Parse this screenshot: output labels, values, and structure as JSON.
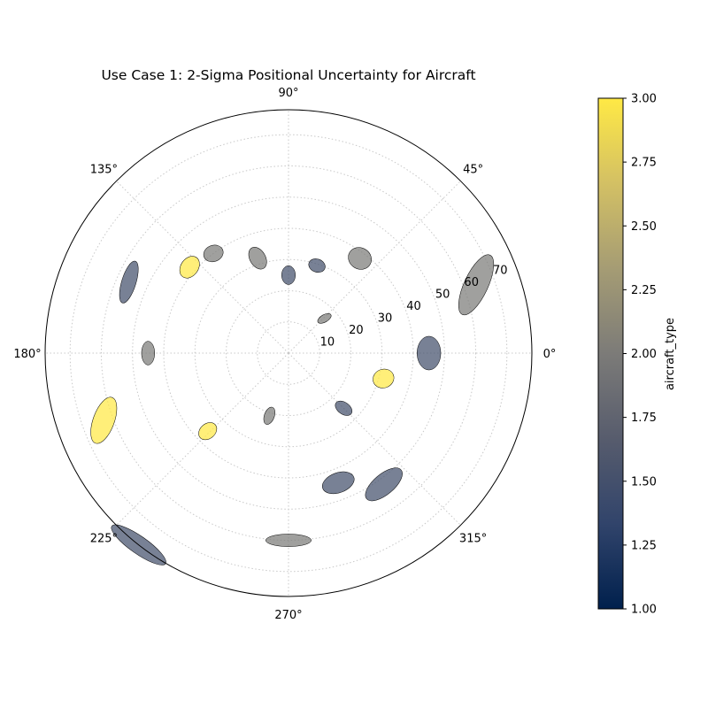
{
  "chart_data": {
    "type": "polar-ellipse-scatter",
    "title": "Use Case 1: 2-Sigma Positional Uncertainty for Aircraft",
    "angle_ticks": [
      "0°",
      "45°",
      "90°",
      "135°",
      "180°",
      "225°",
      "270°",
      "315°"
    ],
    "radial_ticks": [
      "10",
      "20",
      "30",
      "40",
      "50",
      "60",
      "70"
    ],
    "rlim": [
      0,
      78
    ],
    "grid": true,
    "colorbar": {
      "label": "aircraft_type",
      "range": [
        1.0,
        3.0
      ],
      "ticks": [
        "1.00",
        "1.25",
        "1.50",
        "1.75",
        "2.00",
        "2.25",
        "2.50",
        "2.75",
        "3.00"
      ],
      "colormap": "cividis",
      "colors": [
        "#00204d",
        "#31446b",
        "#575c6d",
        "#7c7b78",
        "#a59c74",
        "#d3c064",
        "#ffe945"
      ]
    },
    "aircraft": [
      {
        "theta": 44.0,
        "r": 16.0,
        "type": 2,
        "sigma_major": 2.4,
        "sigma_minor": 1.2,
        "tilt": 30
      },
      {
        "theta": 90.0,
        "r": 25.0,
        "type": 1.5,
        "sigma_major": 3.0,
        "sigma_minor": 2.2,
        "tilt": 90
      },
      {
        "theta": 72.0,
        "r": 29.5,
        "type": 1.5,
        "sigma_major": 2.7,
        "sigma_minor": 2.1,
        "tilt": -20
      },
      {
        "theta": 53.0,
        "r": 38.0,
        "type": 2,
        "sigma_major": 3.8,
        "sigma_minor": 3.4,
        "tilt": -30
      },
      {
        "theta": 108.0,
        "r": 32.0,
        "type": 2,
        "sigma_major": 3.8,
        "sigma_minor": 2.5,
        "tilt": 120
      },
      {
        "theta": 127.0,
        "r": 40.0,
        "type": 2,
        "sigma_major": 3.2,
        "sigma_minor": 2.6,
        "tilt": 20
      },
      {
        "theta": 139.0,
        "r": 42.0,
        "type": 3,
        "sigma_major": 3.8,
        "sigma_minor": 2.8,
        "tilt": 55
      },
      {
        "theta": 156.0,
        "r": 56.0,
        "type": 1.5,
        "sigma_major": 7.0,
        "sigma_minor": 2.3,
        "tilt": 73
      },
      {
        "theta": 180.0,
        "r": 45.0,
        "type": 2,
        "sigma_major": 3.8,
        "sigma_minor": 2.1,
        "tilt": 90
      },
      {
        "theta": 200.0,
        "r": 63.0,
        "type": 3,
        "sigma_major": 7.8,
        "sigma_minor": 3.4,
        "tilt": 70
      },
      {
        "theta": 224.0,
        "r": 36.0,
        "type": 3,
        "sigma_major": 3.2,
        "sigma_minor": 2.4,
        "tilt": 40
      },
      {
        "theta": 253.0,
        "r": 21.0,
        "type": 2,
        "sigma_major": 2.9,
        "sigma_minor": 1.6,
        "tilt": 70
      },
      {
        "theta": 232.0,
        "r": 78.0,
        "type": 1.5,
        "sigma_major": 10.5,
        "sigma_minor": 2.8,
        "tilt": -35
      },
      {
        "theta": 270.0,
        "r": 60.0,
        "type": 2,
        "sigma_major": 7.3,
        "sigma_minor": 2.0,
        "tilt": 0
      },
      {
        "theta": 291.0,
        "r": 44.5,
        "type": 1.5,
        "sigma_major": 5.3,
        "sigma_minor": 3.2,
        "tilt": 20
      },
      {
        "theta": 306.0,
        "r": 52.0,
        "type": 1.5,
        "sigma_major": 7.2,
        "sigma_minor": 3.3,
        "tilt": 40
      },
      {
        "theta": 315.0,
        "r": 25.0,
        "type": 1.5,
        "sigma_major": 3.0,
        "sigma_minor": 1.9,
        "tilt": -35
      },
      {
        "theta": 345.0,
        "r": 31.5,
        "type": 3,
        "sigma_major": 3.4,
        "sigma_minor": 3.0,
        "tilt": 20
      },
      {
        "theta": 0.0,
        "r": 45.0,
        "type": 1.5,
        "sigma_major": 5.4,
        "sigma_minor": 3.8,
        "tilt": 90
      },
      {
        "theta": 20.0,
        "r": 64.0,
        "type": 2,
        "sigma_major": 10.5,
        "sigma_minor": 3.8,
        "tilt": 65
      }
    ]
  }
}
